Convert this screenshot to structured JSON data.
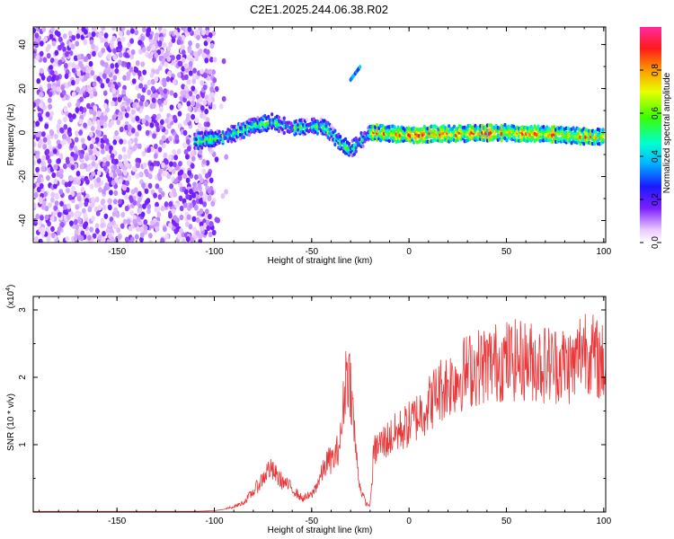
{
  "title": "C2E1.2025.244.06.38.R02",
  "chart_data": [
    {
      "type": "heatmap",
      "name": "spectrogram",
      "xlabel": "Height of straight line (km)",
      "ylabel": "Frequency (Hz)",
      "xlim": [
        -193,
        101
      ],
      "ylim": [
        -50,
        48
      ],
      "x_ticks": [
        -150,
        -100,
        -50,
        0,
        50,
        100
      ],
      "y_ticks": [
        -40,
        -20,
        0,
        20,
        40
      ],
      "colorbar": {
        "label": "Normalized spectral amplitude",
        "range": [
          0,
          1
        ],
        "ticks": [
          0.0,
          0.2,
          0.4,
          0.6,
          0.8
        ]
      },
      "features": [
        {
          "description": "broadband noise (purple)",
          "x_range": [
            -193,
            -100
          ],
          "freq_range": [
            -50,
            48
          ],
          "amplitude": 0.15
        },
        {
          "description": "main echo trace",
          "x": [
            -110,
            -95,
            -80,
            -70,
            -60,
            -45,
            -40,
            -35,
            -30,
            -25,
            -20,
            0,
            50,
            100
          ],
          "freq": [
            -4,
            -2,
            3,
            5,
            2,
            3,
            0,
            -5,
            -8,
            -4,
            0,
            -1,
            0,
            -2
          ]
        },
        {
          "description": "secondary echo",
          "x": [
            -30,
            -25
          ],
          "freq": [
            24,
            30
          ]
        }
      ]
    },
    {
      "type": "line",
      "name": "snr",
      "xlabel": "Height of straight line (km)",
      "ylabel": "SNR (10 * v/v)",
      "y_multiplier": "(x10",
      "y_multiplier_exp": "4",
      "xlim": [
        -193,
        101
      ],
      "ylim": [
        0,
        3.2
      ],
      "x_ticks": [
        -150,
        -100,
        -50,
        0,
        50,
        100
      ],
      "y_ticks": [
        1,
        2,
        3
      ],
      "series": [
        {
          "name": "SNR",
          "color": "#e8383a",
          "x": [
            -193,
            -150,
            -110,
            -100,
            -95,
            -90,
            -85,
            -80,
            -75,
            -72,
            -70,
            -65,
            -60,
            -55,
            -50,
            -45,
            -42,
            -38,
            -35,
            -32,
            -30,
            -27,
            -25,
            -22,
            -20,
            -18,
            -15,
            -10,
            -5,
            0,
            5,
            10,
            15,
            20,
            25,
            30,
            40,
            50,
            60,
            70,
            80,
            85,
            88,
            90,
            95,
            100,
            101
          ],
          "values": [
            0.01,
            0.01,
            0.01,
            0.02,
            0.04,
            0.08,
            0.14,
            0.3,
            0.5,
            0.65,
            0.6,
            0.45,
            0.35,
            0.2,
            0.25,
            0.55,
            0.75,
            0.8,
            1.1,
            2.2,
            1.9,
            0.8,
            0.35,
            0.12,
            0.1,
            0.9,
            1.0,
            1.1,
            1.2,
            1.3,
            1.45,
            1.6,
            1.8,
            1.9,
            2.0,
            2.1,
            2.2,
            2.25,
            2.25,
            2.2,
            2.2,
            2.15,
            2.4,
            2.5,
            2.3,
            2.2,
            2.1
          ]
        }
      ]
    }
  ]
}
